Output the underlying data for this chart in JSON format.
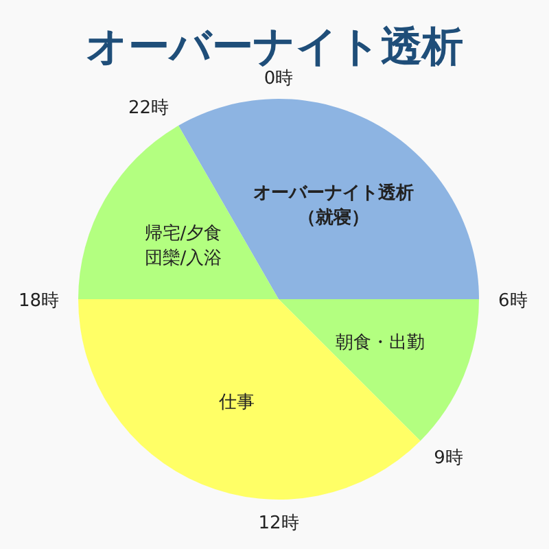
{
  "chart_data": {
    "type": "pie",
    "title": "オーバーナイト透析",
    "categories": [
      "オーバーナイト透析（就寝）",
      "朝食・出勤",
      "仕事",
      "帰宅/夕食団欒/入浴"
    ],
    "values": [
      33.33,
      12.5,
      37.5,
      16.67
    ],
    "colors": [
      "#8db4e2",
      "#b3ff80",
      "#ffff66",
      "#b3ff80"
    ],
    "annotations": [
      "0時",
      "6時",
      "9時",
      "12時",
      "18時",
      "22時"
    ]
  }
}
